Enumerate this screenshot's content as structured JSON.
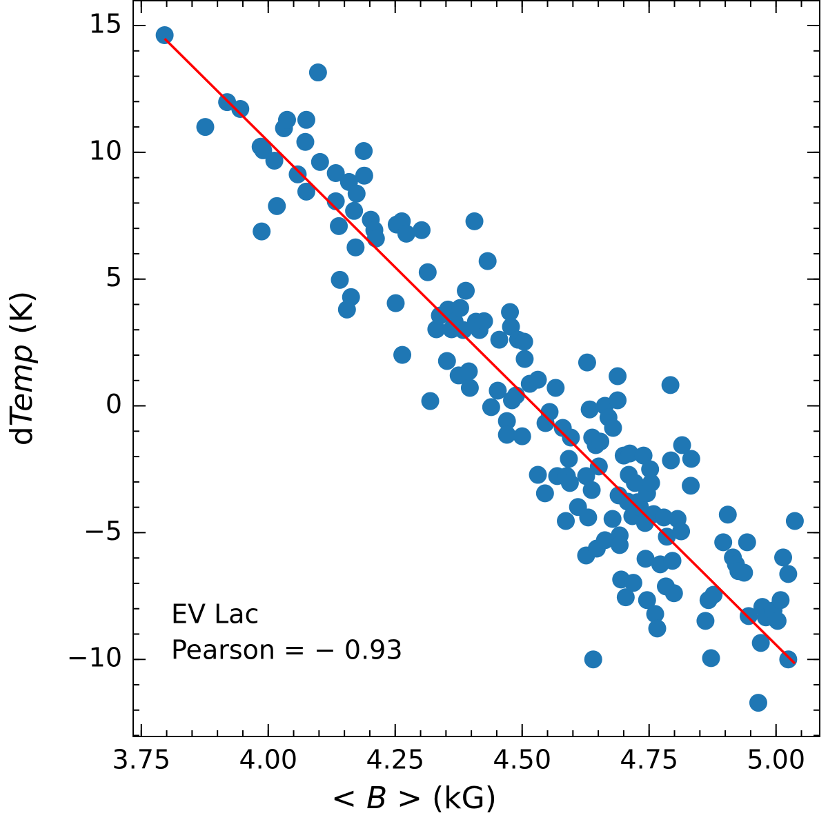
{
  "chart_data": {
    "type": "scatter",
    "xlabel": [
      "< ",
      "B",
      " >  (kG)"
    ],
    "ylabel": [
      "d",
      "Temp",
      " (K)"
    ],
    "annotations": [
      "EV Lac",
      "Pearson = − 0.93"
    ],
    "color": "#1f77b4",
    "xlim": [
      3.734,
      5.086
    ],
    "ylim": [
      -13.04,
      15.98
    ],
    "xticks": [
      3.75,
      {
        "value": 4,
        "label": "4.00"
      },
      4.25,
      {
        "value": 4.5,
        "label": "4.50"
      },
      4.75,
      {
        "value": 5,
        "label": "5.00"
      }
    ],
    "yticks": [
      {
        "value": -10,
        "label": "−10"
      },
      {
        "value": -5,
        "label": "−5"
      },
      0,
      5,
      10,
      15
    ],
    "xminorticks": [
      3.75,
      3.8,
      3.85,
      3.9,
      3.95,
      4,
      4.05,
      4.1,
      4.15,
      4.2,
      4.25,
      4.3,
      4.35,
      4.4,
      4.45,
      4.5,
      4.55,
      4.6,
      4.65,
      4.7,
      4.75,
      4.8,
      4.85,
      4.9,
      4.95,
      5,
      5.05
    ],
    "yminorticks": [
      -13,
      -12,
      -11,
      -10,
      -9,
      -8,
      -7,
      -6,
      -5,
      -4,
      -3,
      -2,
      -1,
      0,
      1,
      2,
      3,
      4,
      5,
      6,
      7,
      8,
      9,
      10,
      11,
      12,
      13,
      14,
      15
    ],
    "x": [
      3.796,
      3.876,
      3.919,
      3.945,
      3.985,
      3.99,
      3.987,
      4.012,
      4.017,
      4.031,
      4.037,
      4.058,
      4.073,
      4.075,
      4.075,
      4.098,
      4.102,
      4.133,
      4.133,
      4.139,
      4.141,
      4.159,
      4.163,
      4.155,
      4.169,
      4.174,
      4.172,
      4.188,
      4.189,
      4.202,
      4.209,
      4.212,
      4.253,
      4.263,
      4.272,
      4.302,
      4.251,
      4.264,
      4.314,
      4.319,
      4.331,
      4.338,
      4.354,
      4.361,
      4.352,
      4.367,
      4.378,
      4.389,
      4.375,
      4.395,
      4.397,
      4.406,
      4.384,
      4.409,
      4.416,
      4.425,
      4.432,
      4.439,
      4.452,
      4.455,
      4.47,
      4.47,
      4.476,
      4.478,
      4.48,
      4.488,
      4.492,
      4.5,
      4.504,
      4.505,
      4.515,
      4.531,
      4.531,
      4.545,
      4.546,
      4.554,
      4.566,
      4.58,
      4.569,
      4.586,
      4.588,
      4.592,
      4.594,
      4.596,
      4.61,
      4.626,
      4.626,
      4.628,
      4.633,
      4.63,
      4.637,
      4.638,
      4.64,
      4.645,
      4.647,
      4.651,
      4.654,
      4.663,
      4.663,
      4.67,
      4.679,
      4.678,
      4.688,
      4.688,
      4.69,
      4.692,
      4.692,
      4.695,
      4.7,
      4.704,
      4.708,
      4.71,
      4.712,
      4.717,
      4.719,
      4.722,
      4.727,
      4.732,
      4.739,
      4.742,
      4.746,
      4.743,
      4.746,
      4.752,
      4.754,
      4.759,
      4.762,
      4.766,
      4.772,
      4.779,
      4.783,
      4.785,
      4.792,
      4.793,
      4.796,
      4.799,
      4.806,
      4.813,
      4.815,
      4.832,
      4.833,
      4.861,
      4.867,
      4.872,
      4.877,
      4.896,
      4.905,
      4.915,
      4.921,
      4.926,
      4.937,
      4.943,
      4.946,
      4.965,
      4.97,
      4.973,
      4.98,
      4.995,
      5.003,
      5.009,
      5.014,
      5.024,
      5.024,
      5.037
    ],
    "values": [
      14.62,
      11.0,
      11.98,
      11.71,
      10.22,
      10.08,
      6.88,
      9.67,
      7.88,
      10.95,
      11.28,
      9.13,
      10.41,
      11.28,
      8.45,
      13.15,
      9.62,
      9.18,
      8.07,
      7.09,
      4.97,
      8.83,
      4.29,
      3.8,
      7.69,
      8.37,
      6.25,
      10.05,
      9.08,
      7.34,
      6.93,
      6.6,
      7.15,
      7.28,
      6.79,
      6.93,
      4.05,
      2.01,
      5.27,
      0.19,
      3.02,
      3.56,
      3.8,
      3.02,
      1.77,
      3.32,
      3.86,
      4.54,
      1.2,
      1.36,
      0.71,
      7.28,
      2.99,
      3.32,
      2.99,
      3.34,
      5.71,
      -0.05,
      0.6,
      2.61,
      -0.6,
      -1.14,
      3.7,
      3.12,
      0.22,
      0.41,
      2.61,
      -1.2,
      2.53,
      1.85,
      0.87,
      1.03,
      -2.72,
      -3.45,
      -0.68,
      -0.24,
      0.71,
      -0.87,
      -2.77,
      -4.54,
      -2.77,
      -2.09,
      -3.04,
      -1.25,
      -3.99,
      -2.77,
      -5.9,
      1.71,
      -0.14,
      -4.4,
      -3.32,
      -1.25,
      -10.0,
      -1.55,
      -5.63,
      -2.39,
      -1.41,
      -5.3,
      0.0,
      -0.46,
      -0.87,
      -4.46,
      1.17,
      0.22,
      -3.53,
      -5.11,
      -5.49,
      -6.85,
      -1.96,
      -7.55,
      -3.78,
      -2.72,
      -1.88,
      -4.35,
      -6.98,
      -3.04,
      -3.8,
      -3.99,
      -1.96,
      -4.62,
      -3.45,
      -6.03,
      -7.66,
      -2.5,
      -3.04,
      -4.27,
      -8.21,
      -8.78,
      -6.25,
      -4.4,
      -7.12,
      -5.16,
      0.82,
      -2.15,
      -6.11,
      -7.39,
      -4.46,
      -4.95,
      -1.55,
      -3.15,
      -2.09,
      -8.48,
      -7.66,
      -9.95,
      -7.45,
      -5.38,
      -4.29,
      -5.98,
      -6.25,
      -6.52,
      -6.58,
      -5.38,
      -8.29,
      -11.71,
      -9.35,
      -7.93,
      -8.34,
      -8.07,
      -8.48,
      -7.66,
      -5.98,
      -6.63,
      -10.0,
      -4.54
    ],
    "fit_line": {
      "x": [
        3.796,
        5.037
      ],
      "values": [
        14.48,
        -10.16
      ],
      "color": "#ff0000"
    }
  }
}
